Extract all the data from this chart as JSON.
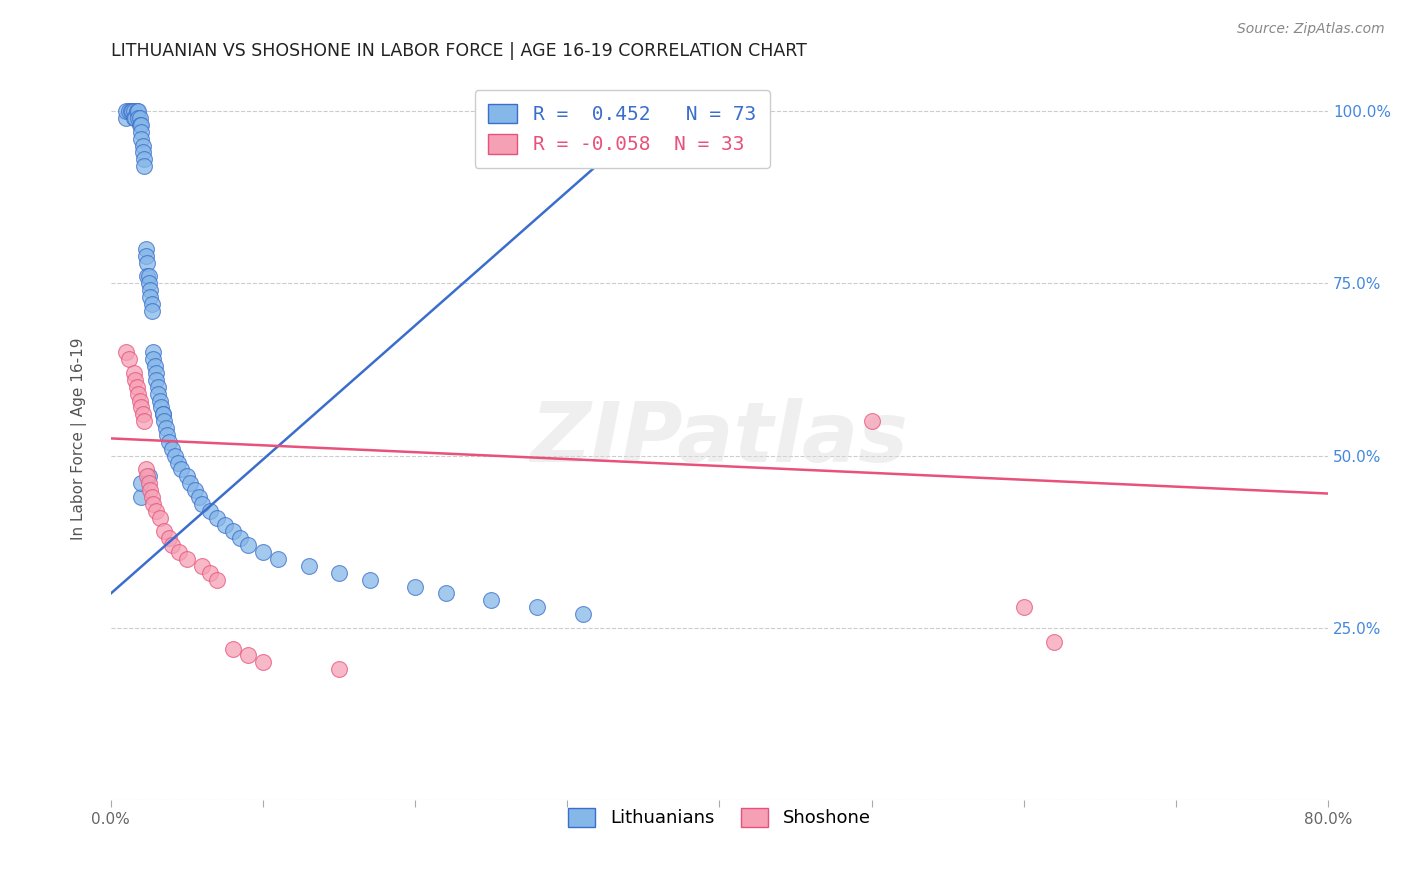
{
  "title": "LITHUANIAN VS SHOSHONE IN LABOR FORCE | AGE 16-19 CORRELATION CHART",
  "source": "Source: ZipAtlas.com",
  "ylabel": "In Labor Force | Age 16-19",
  "xlim": [
    0.0,
    0.8
  ],
  "ylim": [
    0.0,
    1.05
  ],
  "xticks": [
    0.0,
    0.1,
    0.2,
    0.3,
    0.4,
    0.5,
    0.6,
    0.7,
    0.8
  ],
  "xticklabels": [
    "0.0%",
    "",
    "",
    "",
    "",
    "",
    "",
    "",
    "80.0%"
  ],
  "yticks": [
    0.0,
    0.25,
    0.5,
    0.75,
    1.0
  ],
  "yticklabels_right": [
    "",
    "25.0%",
    "50.0%",
    "75.0%",
    "100.0%"
  ],
  "R_blue": 0.452,
  "N_blue": 73,
  "R_pink": -0.058,
  "N_pink": 33,
  "blue_color": "#85B7E8",
  "pink_color": "#F5A0B5",
  "blue_line_color": "#3B6ECC",
  "pink_line_color": "#E8527A",
  "watermark": "ZIPatlas",
  "blue_scatter_x": [
    0.01,
    0.01,
    0.012,
    0.013,
    0.014,
    0.015,
    0.015,
    0.016,
    0.017,
    0.018,
    0.018,
    0.019,
    0.019,
    0.02,
    0.02,
    0.02,
    0.021,
    0.021,
    0.022,
    0.022,
    0.023,
    0.023,
    0.024,
    0.024,
    0.025,
    0.025,
    0.026,
    0.026,
    0.027,
    0.027,
    0.028,
    0.028,
    0.029,
    0.03,
    0.03,
    0.031,
    0.031,
    0.032,
    0.033,
    0.034,
    0.034,
    0.035,
    0.036,
    0.037,
    0.038,
    0.04,
    0.042,
    0.044,
    0.046,
    0.05,
    0.052,
    0.055,
    0.058,
    0.06,
    0.065,
    0.07,
    0.075,
    0.08,
    0.085,
    0.09,
    0.1,
    0.11,
    0.13,
    0.15,
    0.17,
    0.2,
    0.22,
    0.25,
    0.28,
    0.31,
    0.02,
    0.02,
    0.025
  ],
  "blue_scatter_y": [
    0.99,
    1.0,
    1.0,
    1.0,
    1.0,
    1.0,
    0.99,
    0.99,
    1.0,
    1.0,
    0.99,
    0.99,
    0.98,
    0.98,
    0.97,
    0.96,
    0.95,
    0.94,
    0.93,
    0.92,
    0.8,
    0.79,
    0.78,
    0.76,
    0.76,
    0.75,
    0.74,
    0.73,
    0.72,
    0.71,
    0.65,
    0.64,
    0.63,
    0.62,
    0.61,
    0.6,
    0.59,
    0.58,
    0.57,
    0.56,
    0.56,
    0.55,
    0.54,
    0.53,
    0.52,
    0.51,
    0.5,
    0.49,
    0.48,
    0.47,
    0.46,
    0.45,
    0.44,
    0.43,
    0.42,
    0.41,
    0.4,
    0.39,
    0.38,
    0.37,
    0.36,
    0.35,
    0.34,
    0.33,
    0.32,
    0.31,
    0.3,
    0.29,
    0.28,
    0.27,
    0.44,
    0.46,
    0.47
  ],
  "pink_scatter_x": [
    0.01,
    0.012,
    0.015,
    0.016,
    0.017,
    0.018,
    0.019,
    0.02,
    0.021,
    0.022,
    0.023,
    0.024,
    0.025,
    0.026,
    0.027,
    0.028,
    0.03,
    0.032,
    0.035,
    0.038,
    0.04,
    0.045,
    0.05,
    0.06,
    0.065,
    0.07,
    0.08,
    0.09,
    0.1,
    0.15,
    0.5,
    0.6,
    0.62
  ],
  "pink_scatter_y": [
    0.65,
    0.64,
    0.62,
    0.61,
    0.6,
    0.59,
    0.58,
    0.57,
    0.56,
    0.55,
    0.48,
    0.47,
    0.46,
    0.45,
    0.44,
    0.43,
    0.42,
    0.41,
    0.39,
    0.38,
    0.37,
    0.36,
    0.35,
    0.34,
    0.33,
    0.32,
    0.22,
    0.21,
    0.2,
    0.19,
    0.55,
    0.28,
    0.23
  ],
  "blue_line_x0": 0.0,
  "blue_line_x1": 0.36,
  "blue_line_y0": 0.3,
  "blue_line_y1": 1.0,
  "pink_line_x0": 0.0,
  "pink_line_x1": 0.8,
  "pink_line_y0": 0.525,
  "pink_line_y1": 0.445
}
